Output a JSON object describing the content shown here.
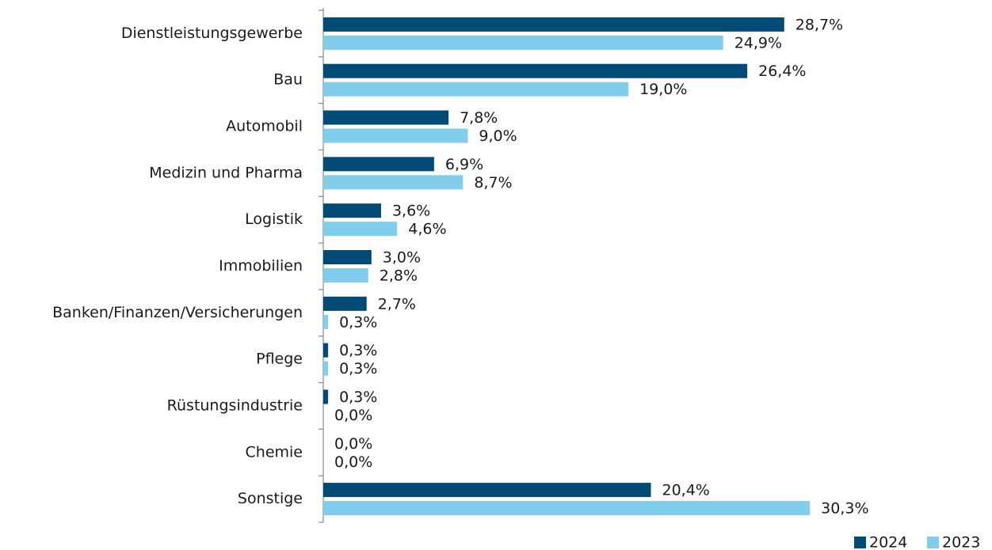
{
  "chart_data": {
    "type": "bar",
    "orientation": "horizontal",
    "categories": [
      "Dienstleistungsgewerbe",
      "Bau",
      "Automobil",
      "Medizin und Pharma",
      "Logistik",
      "Immobilien",
      "Banken/Finanzen/Versicherungen",
      "Pflege",
      "Rüstungsindustrie",
      "Chemie",
      "Sonstige"
    ],
    "series": [
      {
        "name": "2024",
        "color": "#004b76",
        "values": [
          28.7,
          26.4,
          7.8,
          6.9,
          3.6,
          3.0,
          2.7,
          0.3,
          0.3,
          0.0,
          20.4
        ],
        "value_labels": [
          "28,7%",
          "26,4%",
          "7,8%",
          "6,9%",
          "3,6%",
          "3,0%",
          "2,7%",
          "0,3%",
          "0,3%",
          "0,0%",
          "20,4%"
        ]
      },
      {
        "name": "2023",
        "color": "#80cdec",
        "values": [
          24.9,
          19.0,
          9.0,
          8.7,
          4.6,
          2.8,
          0.3,
          0.3,
          0.0,
          0.0,
          30.3
        ],
        "value_labels": [
          "24,9%",
          "19,0%",
          "9,0%",
          "8,7%",
          "4,6%",
          "2,8%",
          "0,3%",
          "0,3%",
          "0,0%",
          "0,0%",
          "30,3%"
        ]
      }
    ],
    "legend": "bottom-right"
  }
}
